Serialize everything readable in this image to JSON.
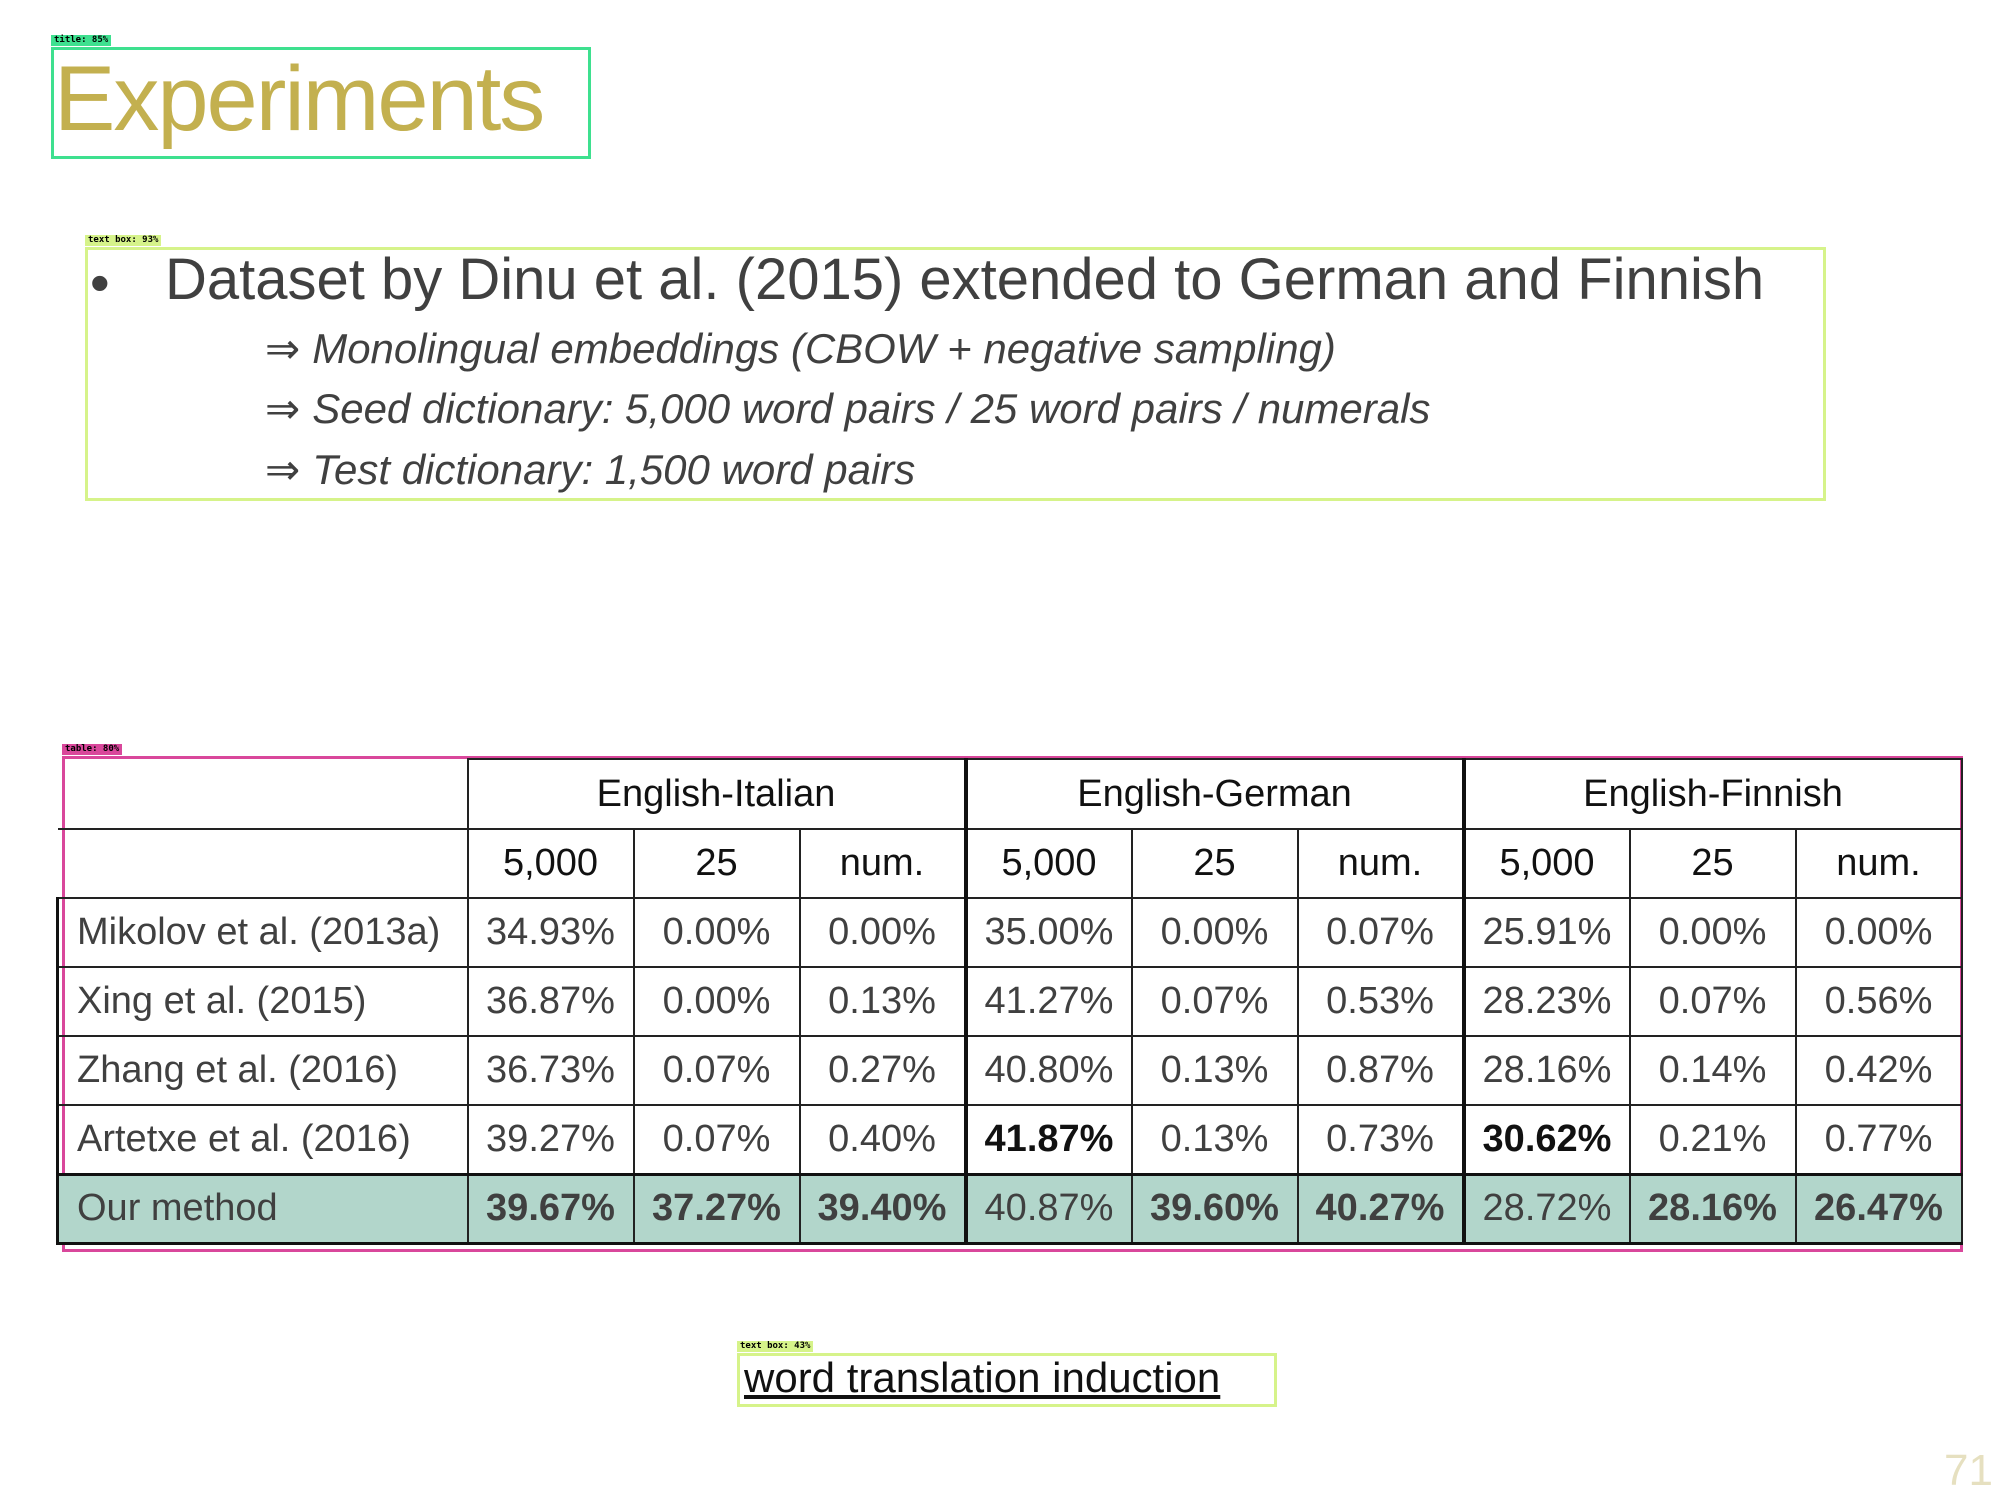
{
  "annotations": {
    "title_tag": "title: 85%",
    "text_tag": "text box: 93%",
    "table_tag": "table: 80%",
    "caption_tag": "text box: 43%"
  },
  "slide": {
    "title": "Experiments",
    "bullet": "Dataset by Dinu et al. (2015) extended to German and Finnish",
    "arrow_symbol": "⇒",
    "sub_points": [
      "Monolingual embeddings (CBOW + negative sampling)",
      "Seed dictionary:  5,000 word pairs / 25 word pairs / numerals",
      "Test dictionary:   1,500 word pairs"
    ],
    "caption": "word translation induction",
    "page_number": "71"
  },
  "table": {
    "groups": [
      "English-Italian",
      "English-German",
      "English-Finnish"
    ],
    "subheaders": [
      "5,000",
      "25",
      "num."
    ],
    "rows": [
      {
        "method": "Mikolov et al. (2013a)",
        "values": [
          "34.93%",
          "0.00%",
          "0.00%",
          "35.00%",
          "0.00%",
          "0.07%",
          "25.91%",
          "0.00%",
          "0.00%"
        ],
        "best": []
      },
      {
        "method": "Xing et al. (2015)",
        "values": [
          "36.87%",
          "0.00%",
          "0.13%",
          "41.27%",
          "0.07%",
          "0.53%",
          "28.23%",
          "0.07%",
          "0.56%"
        ],
        "best": []
      },
      {
        "method": "Zhang et al. (2016)",
        "values": [
          "36.73%",
          "0.07%",
          "0.27%",
          "40.80%",
          "0.13%",
          "0.87%",
          "28.16%",
          "0.14%",
          "0.42%"
        ],
        "best": []
      },
      {
        "method": "Artetxe et al. (2016)",
        "values": [
          "39.27%",
          "0.07%",
          "0.40%",
          "41.87%",
          "0.13%",
          "0.73%",
          "30.62%",
          "0.21%",
          "0.77%"
        ],
        "best": [
          3,
          6
        ]
      },
      {
        "method": "Our method",
        "values": [
          "39.67%",
          "37.27%",
          "39.40%",
          "40.87%",
          "39.60%",
          "40.27%",
          "28.72%",
          "28.16%",
          "26.47%"
        ],
        "best": [
          0,
          1,
          2,
          4,
          5,
          7,
          8
        ],
        "highlight": true
      }
    ]
  },
  "colors": {
    "title": "#c3b04f",
    "highlight_row": "#b2d6cb",
    "title_box": "#3ee08f",
    "text_box": "#d6f38a",
    "table_box": "#d9479b"
  }
}
